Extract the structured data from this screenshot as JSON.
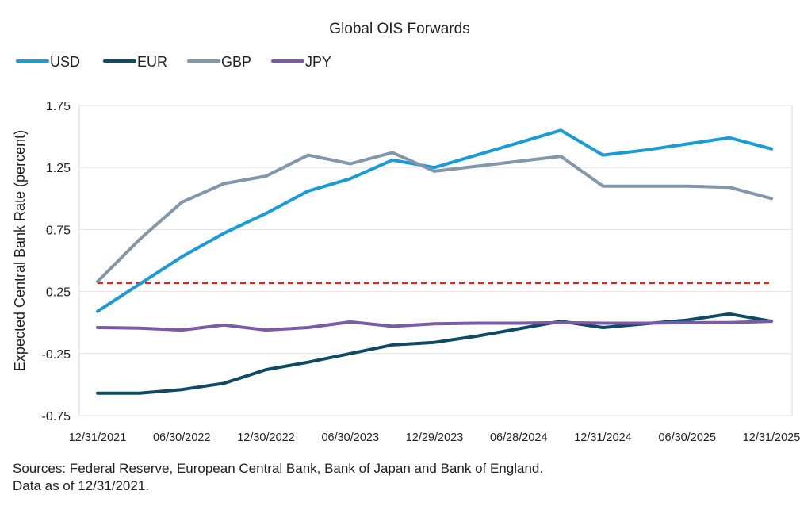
{
  "chart_data": {
    "type": "line",
    "title": "Global OIS Forwards",
    "ylabel": "Expected Central Bank Rate (percent)",
    "xlabel": "",
    "ylim": [
      -0.75,
      1.75
    ],
    "y_ticks": [
      "1.75",
      "1.25",
      "0.75",
      "0.25",
      "-0.25",
      "-0.75"
    ],
    "y_tick_values": [
      1.75,
      1.25,
      0.75,
      0.25,
      -0.25,
      -0.75
    ],
    "x_tick_labels": [
      "12/31/2021",
      "06/30/2022",
      "12/30/2022",
      "06/30/2023",
      "12/29/2023",
      "06/28/2024",
      "12/31/2024",
      "06/30/2025",
      "12/31/2025"
    ],
    "x_tick_values": [
      0,
      6,
      12,
      18,
      24,
      30,
      36,
      42,
      48
    ],
    "x_domain": [
      0,
      48
    ],
    "legend_position": "top-left",
    "series": [
      {
        "name": "USD",
        "color": "#1A9BD7",
        "x": [
          0,
          3,
          6,
          9,
          12,
          15,
          18,
          21,
          24,
          27,
          30,
          33,
          36,
          39,
          42,
          45,
          48
        ],
        "values": [
          0.09,
          0.31,
          0.53,
          0.72,
          0.88,
          1.06,
          1.16,
          1.31,
          1.25,
          1.35,
          1.45,
          1.55,
          1.35,
          1.39,
          1.44,
          1.49,
          1.4
        ]
      },
      {
        "name": "EUR",
        "color": "#0E4A63",
        "x": [
          0,
          3,
          6,
          9,
          12,
          15,
          18,
          21,
          24,
          27,
          30,
          33,
          36,
          39,
          42,
          45,
          48
        ],
        "values": [
          -0.57,
          -0.57,
          -0.54,
          -0.49,
          -0.38,
          -0.32,
          -0.25,
          -0.18,
          -0.16,
          -0.11,
          -0.05,
          0.01,
          -0.04,
          -0.01,
          0.02,
          0.07,
          0.01
        ]
      },
      {
        "name": "GBP",
        "color": "#8297AA",
        "x": [
          0,
          3,
          6,
          9,
          12,
          15,
          18,
          21,
          24,
          27,
          30,
          33,
          36,
          39,
          42,
          45,
          48
        ],
        "values": [
          0.33,
          0.67,
          0.97,
          1.12,
          1.18,
          1.35,
          1.28,
          1.37,
          1.22,
          1.26,
          1.3,
          1.34,
          1.1,
          1.1,
          1.1,
          1.09,
          1.0
        ]
      },
      {
        "name": "JPY",
        "color": "#7B5BA7",
        "x": [
          0,
          3,
          6,
          9,
          12,
          15,
          18,
          21,
          24,
          27,
          30,
          33,
          36,
          39,
          42,
          45,
          48
        ],
        "values": [
          -0.04,
          -0.045,
          -0.06,
          -0.02,
          -0.06,
          -0.04,
          0.005,
          -0.03,
          -0.01,
          -0.005,
          -0.005,
          0.0,
          -0.005,
          -0.005,
          0.0,
          0.0,
          0.01
        ]
      }
    ],
    "reference_line": {
      "value": 0.32,
      "color": "#E2231A",
      "style": "dashed"
    }
  },
  "footer": {
    "sources": "Sources: Federal Reserve, European Central Bank, Bank of Japan and Bank of England.",
    "data_as_of": "Data as of 12/31/2021."
  }
}
